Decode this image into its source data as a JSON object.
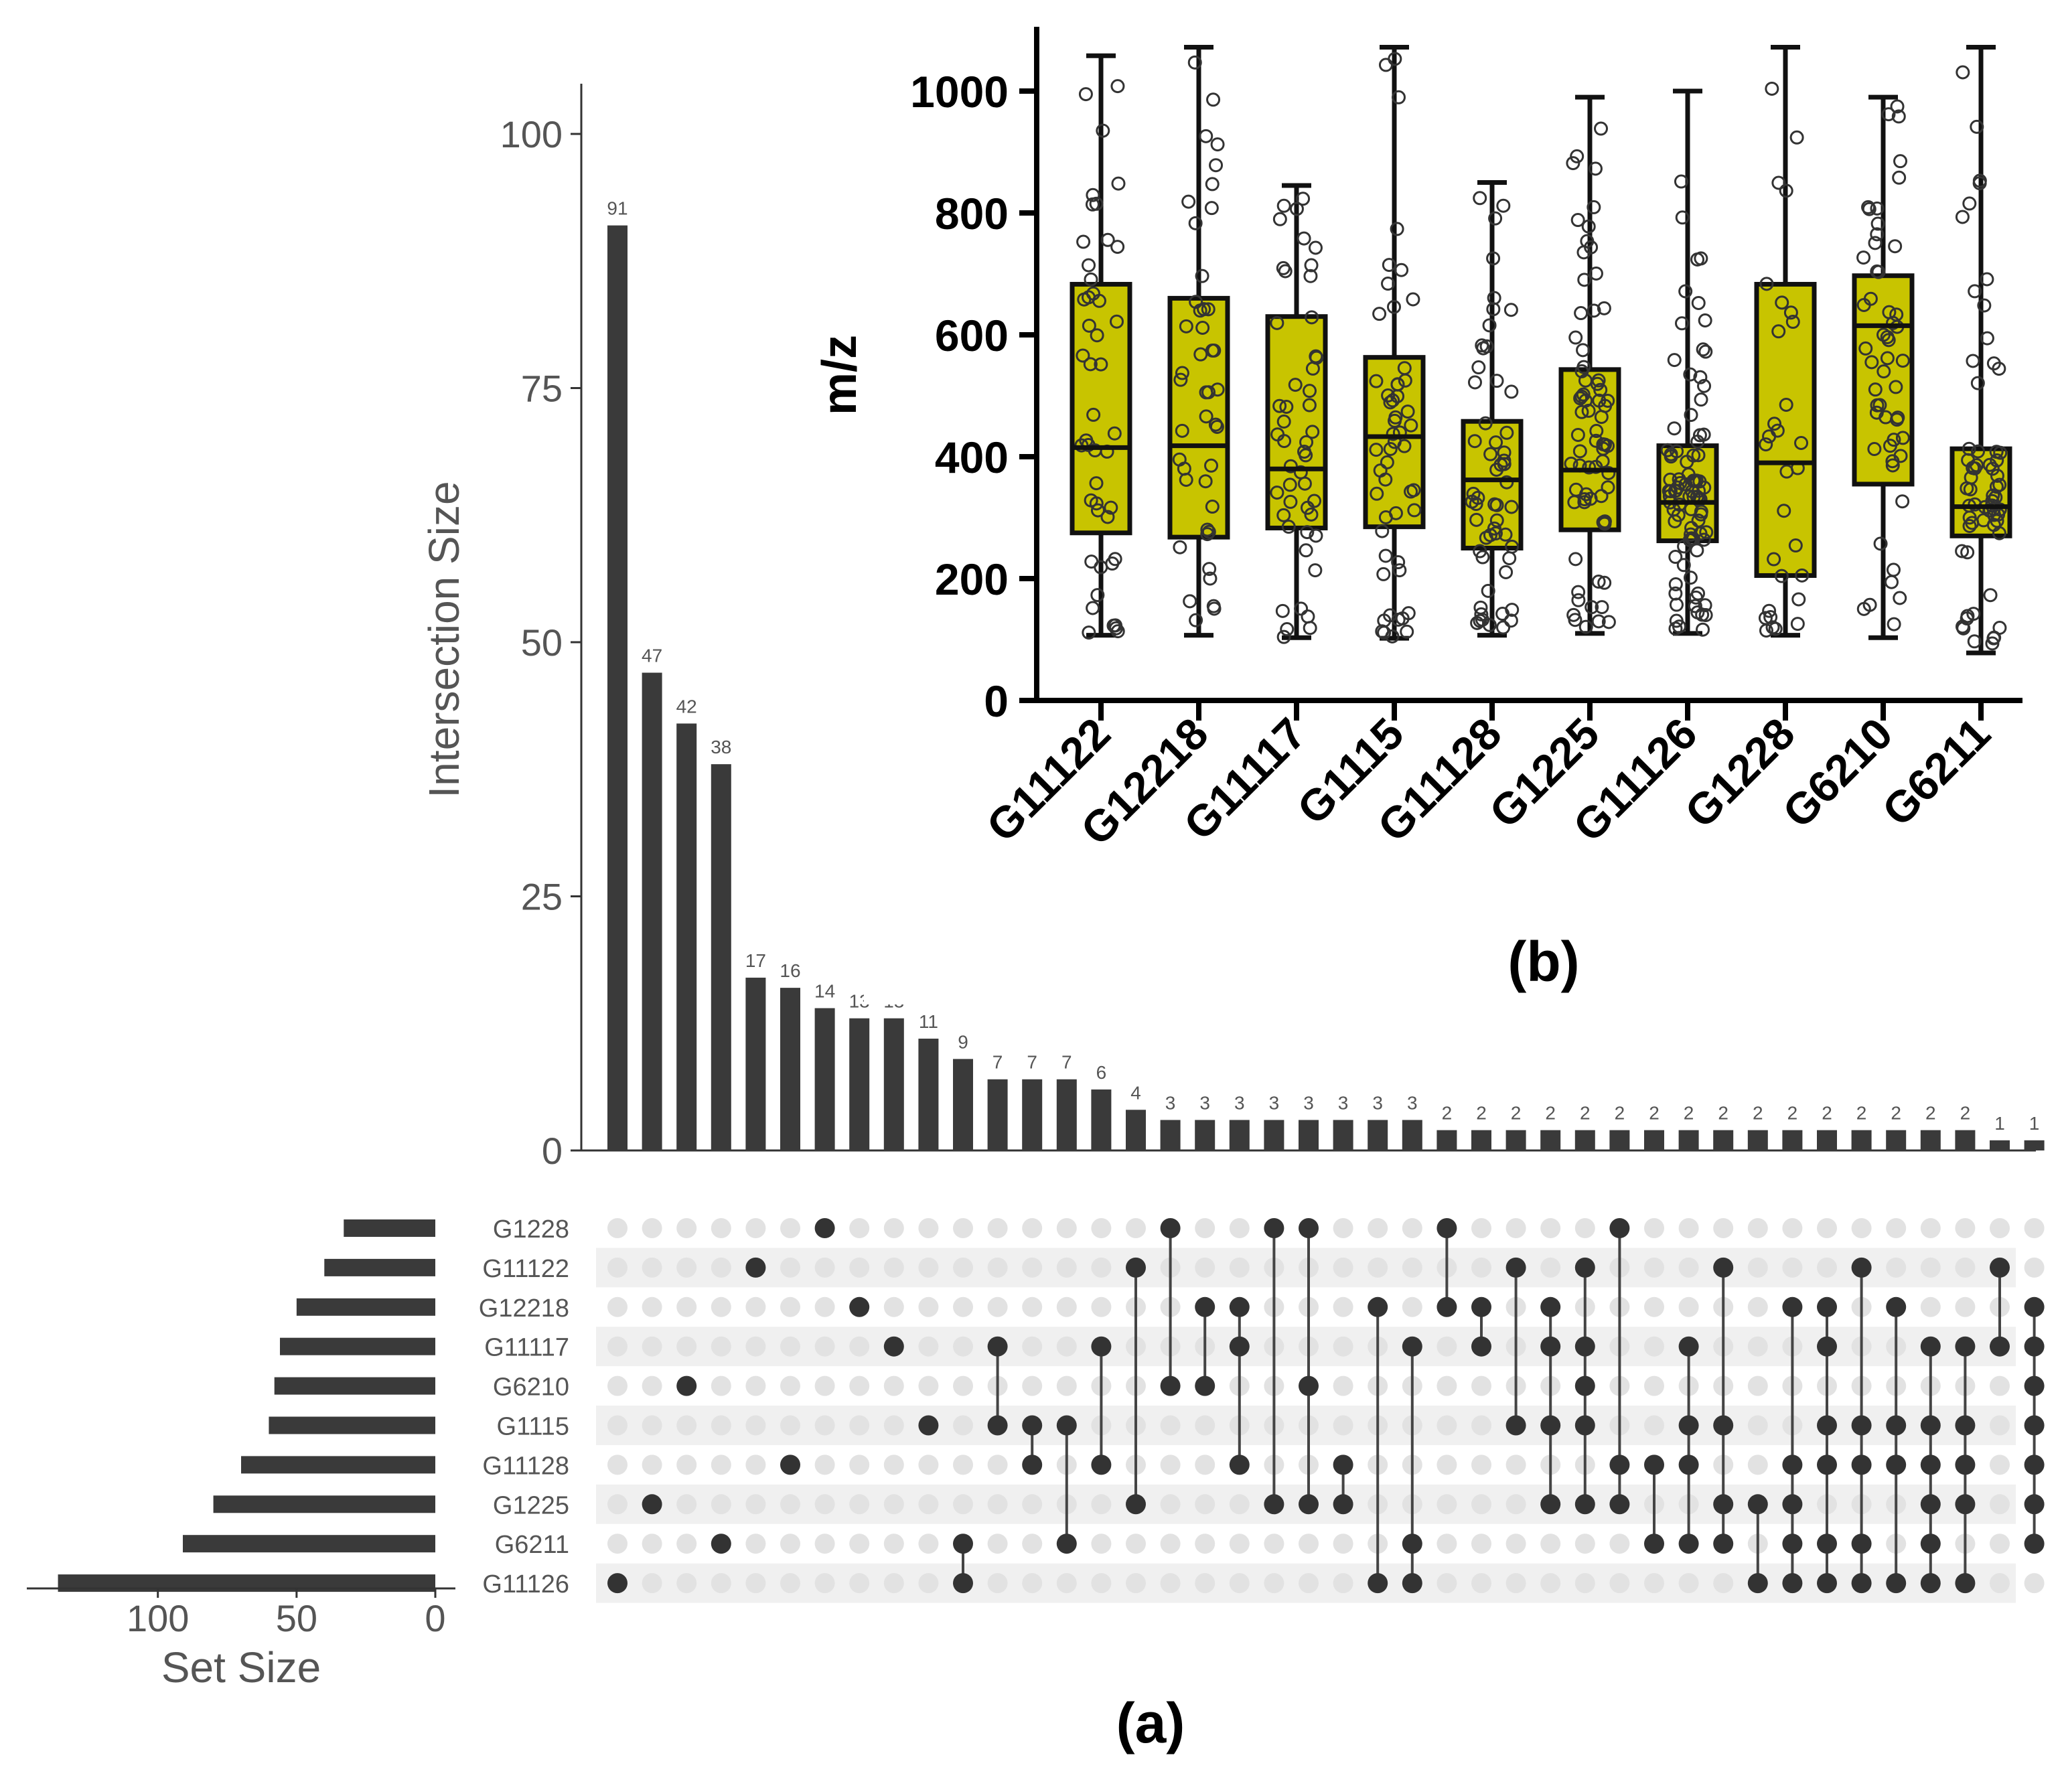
{
  "chart_data": [
    {
      "type": "upset",
      "panel_label": "(a)",
      "ylabel": "Intersection Size",
      "ylim": [
        0,
        105
      ],
      "yticks": [
        "0",
        "25",
        "50",
        "75",
        "100"
      ],
      "set_size_label": "Set Size",
      "set_size_ticks": [
        "100",
        "50",
        "0"
      ],
      "sets": [
        "G1228",
        "G11122",
        "G12218",
        "G11117",
        "G6210",
        "G1115",
        "G11128",
        "G1225",
        "G6211",
        "G11126"
      ],
      "set_sizes": [
        33,
        40,
        50,
        56,
        58,
        60,
        70,
        80,
        91,
        136
      ],
      "intersection_values": [
        91,
        47,
        42,
        38,
        17,
        16,
        14,
        13,
        13,
        11,
        9,
        7,
        7,
        7,
        6,
        4,
        3,
        3,
        3,
        3,
        3,
        3,
        3,
        3,
        2,
        2,
        2,
        2,
        2,
        2,
        2,
        2,
        2,
        2,
        2,
        2,
        2,
        2,
        2,
        2,
        1,
        1
      ],
      "intersection_labels": [
        "91",
        "47",
        "42",
        "38",
        "17",
        "16",
        "14",
        "13",
        "13",
        "11",
        "9",
        "7",
        "7",
        "7",
        "6",
        "4",
        "3",
        "3",
        "3",
        "3",
        "3",
        "3",
        "3",
        "3",
        "2",
        "2",
        "2",
        "2",
        "2",
        "2",
        "2",
        "2",
        "2",
        "2",
        "2",
        "2",
        "2",
        "2",
        "2",
        "2",
        "1",
        "1"
      ],
      "intersections": [
        [
          "G11126"
        ],
        [
          "G1225"
        ],
        [
          "G6210"
        ],
        [
          "G6211"
        ],
        [
          "G11122"
        ],
        [
          "G11128"
        ],
        [
          "G1228"
        ],
        [
          "G12218"
        ],
        [
          "G11117"
        ],
        [
          "G1115"
        ],
        [
          "G6211",
          "G11126"
        ],
        [
          "G11117",
          "G1115"
        ],
        [
          "G1115",
          "G11128"
        ],
        [
          "G1115",
          "G6211"
        ],
        [
          "G11117",
          "G11128"
        ],
        [
          "G11122",
          "G1225"
        ],
        [
          "G1228",
          "G6210"
        ],
        [
          "G12218",
          "G6210"
        ],
        [
          "G12218",
          "G11117",
          "G11128"
        ],
        [
          "G1228",
          "G1225"
        ],
        [
          "G1228",
          "G6210",
          "G1225"
        ],
        [
          "G11128",
          "G1225"
        ],
        [
          "G12218",
          "G11126"
        ],
        [
          "G11117",
          "G6211",
          "G11126"
        ],
        [
          "G1228",
          "G12218"
        ],
        [
          "G12218",
          "G11117"
        ],
        [
          "G11122",
          "G1115"
        ],
        [
          "G12218",
          "G11117",
          "G1115",
          "G1225"
        ],
        [
          "G11122",
          "G11117",
          "G6210",
          "G1115",
          "G1225"
        ],
        [
          "G1228",
          "G11128",
          "G1225"
        ],
        [
          "G11128",
          "G6211"
        ],
        [
          "G11117",
          "G1115",
          "G11128",
          "G6211"
        ],
        [
          "G11122",
          "G1115",
          "G1225",
          "G6211"
        ],
        [
          "G1225",
          "G11126"
        ],
        [
          "G12218",
          "G11128",
          "G1225",
          "G6211",
          "G11126"
        ],
        [
          "G12218",
          "G11117",
          "G1115",
          "G11128",
          "G6211",
          "G11126"
        ],
        [
          "G11122",
          "G1115",
          "G11128",
          "G6211",
          "G11126"
        ],
        [
          "G12218",
          "G1115",
          "G11128",
          "G11126"
        ],
        [
          "G11117",
          "G1115",
          "G11128",
          "G1225",
          "G6211",
          "G11126"
        ],
        [
          "G11117",
          "G1115",
          "G11128",
          "G1225",
          "G11126"
        ],
        [
          "G11122",
          "G11117"
        ],
        [
          "G12218",
          "G11117",
          "G6210",
          "G1115",
          "G11128",
          "G1225",
          "G6211"
        ]
      ]
    },
    {
      "type": "box",
      "panel_label": "(b)",
      "ylabel": "m/z",
      "ylim": [
        0,
        1100
      ],
      "yticks": [
        "0",
        "200",
        "400",
        "600",
        "800",
        "1000"
      ],
      "categories": [
        "G11122",
        "G12218",
        "G11117",
        "G1115",
        "G11128",
        "G1225",
        "G11126",
        "G1228",
        "G6210",
        "G6211"
      ],
      "min": [
        107,
        107,
        103,
        102,
        107,
        110,
        110,
        107,
        103,
        78
      ],
      "q1": [
        275,
        268,
        283,
        285,
        250,
        280,
        262,
        205,
        355,
        270
      ],
      "median": [
        415,
        418,
        380,
        433,
        362,
        378,
        325,
        390,
        615,
        318
      ],
      "q3": [
        683,
        660,
        630,
        563,
        458,
        543,
        418,
        683,
        697,
        413
      ],
      "max": [
        1058,
        1072,
        845,
        1072,
        850,
        990,
        1000,
        1072,
        990,
        1072
      ],
      "points_per_box": [
        46,
        44,
        48,
        52,
        56,
        70,
        86,
        30,
        52,
        64
      ],
      "fill_color": "#C8C400"
    }
  ]
}
